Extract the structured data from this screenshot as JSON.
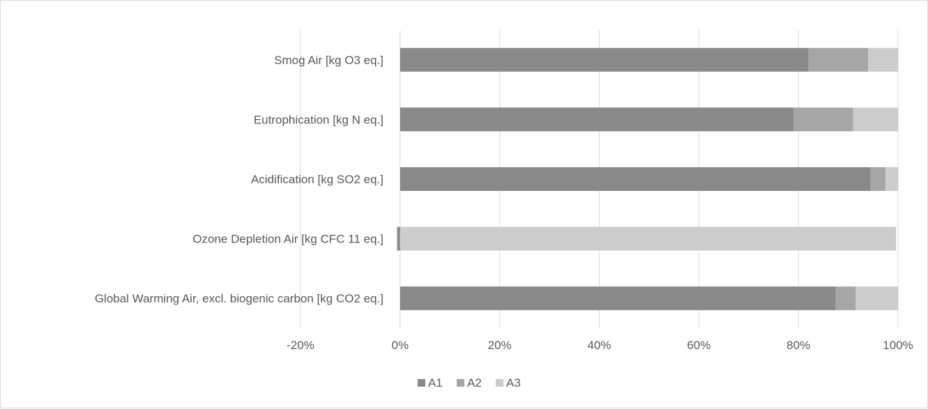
{
  "chart_data": {
    "type": "bar",
    "orientation": "horizontal",
    "stacked": true,
    "categories": [
      "Smog Air [kg O3 eq.]",
      "Eutrophication [kg N eq.]",
      "Acidification [kg SO2 eq.]",
      "Ozone Depletion Air [kg CFC 11 eq.]",
      "Global Warming Air, excl. biogenic carbon [kg CO2 eq.]"
    ],
    "series": [
      {
        "name": "A1",
        "color": "#898989",
        "values": [
          82,
          79,
          94.5,
          -0.6,
          87.5
        ]
      },
      {
        "name": "A2",
        "color": "#a6a6a6",
        "values": [
          12,
          12,
          3,
          0,
          4
        ]
      },
      {
        "name": "A3",
        "color": "#cccccc",
        "values": [
          6,
          9,
          2.5,
          99.6,
          8.5
        ]
      }
    ],
    "xlim": [
      -20,
      100
    ],
    "xticks": [
      -20,
      0,
      20,
      40,
      60,
      80,
      100
    ],
    "tick_labels": [
      "-20%",
      "0%",
      "20%",
      "40%",
      "60%",
      "80%",
      "100%"
    ],
    "title": "",
    "xlabel": "",
    "ylabel": "",
    "grid": "vertical",
    "legend_position": "bottom"
  }
}
